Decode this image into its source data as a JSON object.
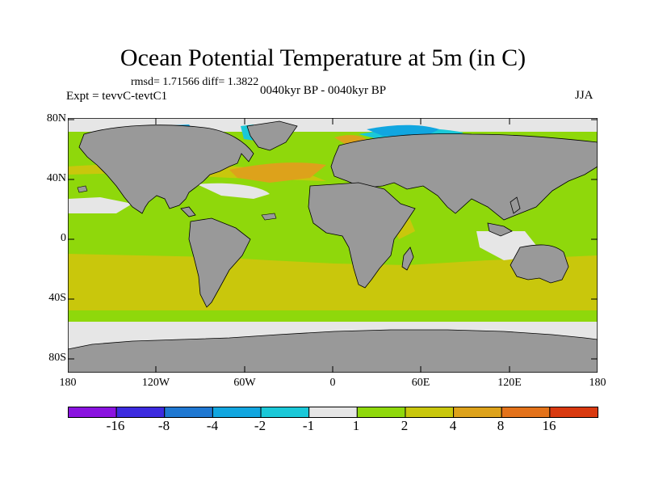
{
  "title": "Ocean Potential Temperature at 5m (in C)",
  "stats": "rmsd= 1.71566 diff= 1.3822",
  "expt": "Expt = tevvC-tevtC1",
  "period": "0040kyr BP - 0040kyr BP",
  "season": "JJA",
  "axes": {
    "x_ticks": [
      "180",
      "120W",
      "60W",
      "0",
      "60E",
      "120E",
      "180"
    ],
    "y_ticks": [
      "80N",
      "40N",
      "0",
      "40S",
      "80S"
    ]
  },
  "colors": {
    "land": "#999999",
    "near_zero": "#e6e6e6",
    "bin_1_2": "#8fd80b",
    "bin_2_4": "#c9c70c",
    "bin_4_8": "#dda21b",
    "bin_8_16": "#e3721a",
    "bin_neg_2_1": "#1ac8d8",
    "bin_neg_4_2": "#11a6e0",
    "bin_neg_8_4": "#1f78d2"
  },
  "colorbar": {
    "labels": [
      "-16",
      "-8",
      "-4",
      "-2",
      "-1",
      "1",
      "2",
      "4",
      "8",
      "16"
    ],
    "colors": [
      "#8a12e0",
      "#3c2be0",
      "#1f78d2",
      "#11a6e0",
      "#1ac8d8",
      "#e6e6e6",
      "#8fd80b",
      "#c9c70c",
      "#dda21b",
      "#e3721a",
      "#d9390f"
    ]
  }
}
